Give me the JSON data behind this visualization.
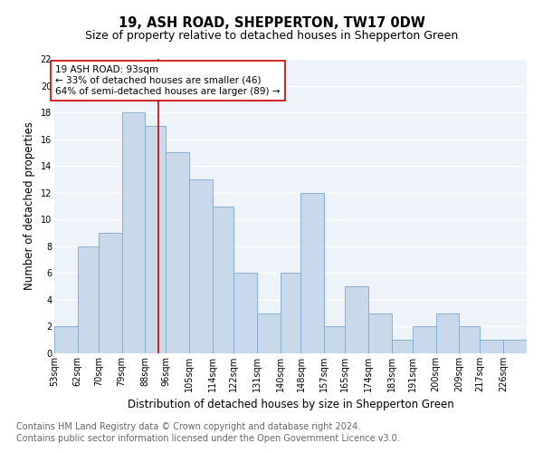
{
  "title": "19, ASH ROAD, SHEPPERTON, TW17 0DW",
  "subtitle": "Size of property relative to detached houses in Shepperton Green",
  "xlabel": "Distribution of detached houses by size in Shepperton Green",
  "ylabel": "Number of detached properties",
  "footnote1": "Contains HM Land Registry data © Crown copyright and database right 2024.",
  "footnote2": "Contains public sector information licensed under the Open Government Licence v3.0.",
  "bin_labels": [
    "53sqm",
    "62sqm",
    "70sqm",
    "79sqm",
    "88sqm",
    "96sqm",
    "105sqm",
    "114sqm",
    "122sqm",
    "131sqm",
    "140sqm",
    "148sqm",
    "157sqm",
    "165sqm",
    "174sqm",
    "183sqm",
    "191sqm",
    "200sqm",
    "209sqm",
    "217sqm",
    "226sqm"
  ],
  "bar_values": [
    2,
    8,
    9,
    18,
    17,
    15,
    13,
    11,
    6,
    3,
    6,
    12,
    2,
    5,
    3,
    1,
    2,
    3,
    2,
    1,
    1
  ],
  "bin_edges": [
    53,
    62,
    70,
    79,
    88,
    96,
    105,
    114,
    122,
    131,
    140,
    148,
    157,
    165,
    174,
    183,
    191,
    200,
    209,
    217,
    226,
    235
  ],
  "bar_color": "#c9d9ec",
  "bar_edge_color": "#7aa8cc",
  "vline_x": 93,
  "vline_color": "#cc0000",
  "annotation_text": "19 ASH ROAD: 93sqm\n← 33% of detached houses are smaller (46)\n64% of semi-detached houses are larger (89) →",
  "annotation_box_color": "#ffffff",
  "annotation_box_edge": "#cc0000",
  "ylim": [
    0,
    22
  ],
  "yticks": [
    0,
    2,
    4,
    6,
    8,
    10,
    12,
    14,
    16,
    18,
    20,
    22
  ],
  "bg_color": "#eef2f9",
  "grid_color": "#ffffff",
  "title_fontsize": 10.5,
  "subtitle_fontsize": 9,
  "xlabel_fontsize": 8.5,
  "ylabel_fontsize": 8.5,
  "footnote_fontsize": 7,
  "tick_fontsize": 7,
  "annot_fontsize": 7.5
}
